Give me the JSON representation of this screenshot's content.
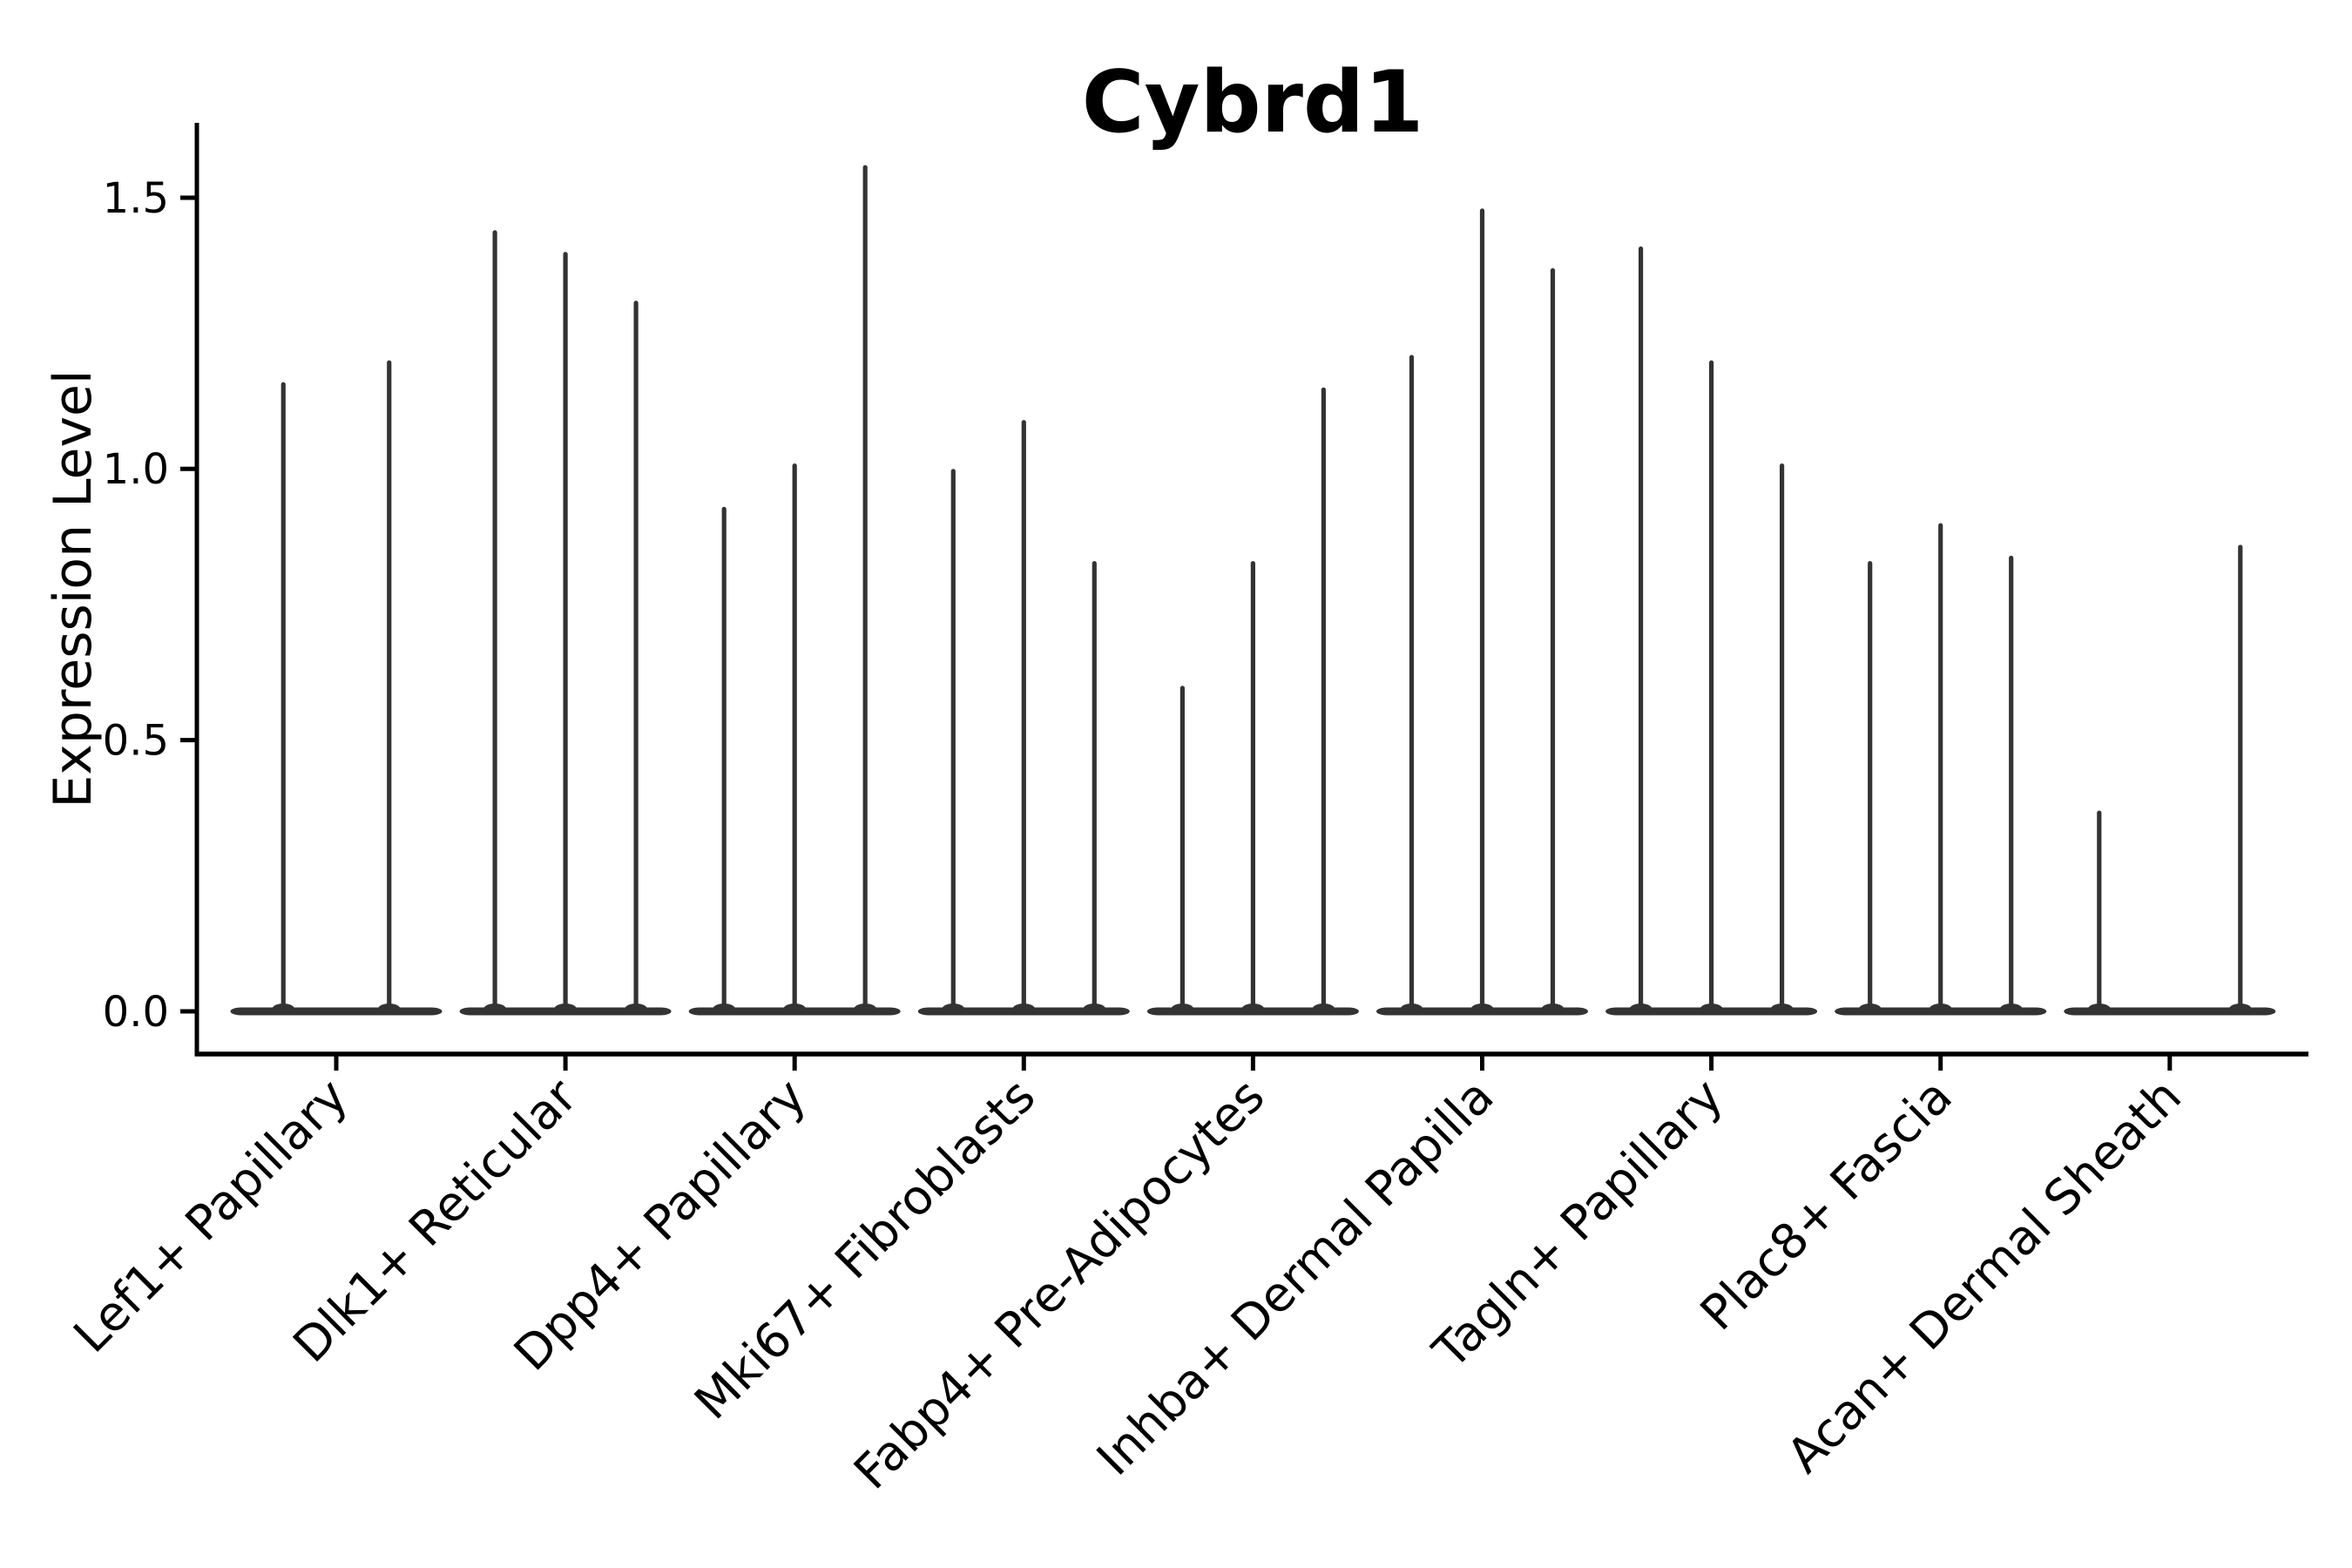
{
  "chart_data": {
    "type": "violin",
    "title": "Cybrd1",
    "xlabel": "",
    "ylabel": "Expression Level",
    "ylim": [
      -0.08,
      1.64
    ],
    "yticks": [
      0.0,
      0.5,
      1.0,
      1.5
    ],
    "ytick_labels": [
      "0.0",
      "0.5",
      "1.0",
      "1.5"
    ],
    "grid": false,
    "legend": "none",
    "axis_color": "#000000",
    "violin_color": "#333333",
    "description": "Each group shows narrow violins: a flat density mass at expression 0 with a thin spike rising to the maximum expression value; spike_maxima lists the top of each violin spike (null = violin present with no spike).",
    "groups": [
      {
        "label": "Lef1+ Papillary",
        "spike_maxima": [
          1.16,
          1.2
        ]
      },
      {
        "label": "Dlk1+ Reticular",
        "spike_maxima": [
          1.44,
          1.4,
          1.31
        ]
      },
      {
        "label": "Dpp4+ Papillary",
        "spike_maxima": [
          0.93,
          1.01,
          1.56
        ]
      },
      {
        "label": "Mki67+ Fibroblasts",
        "spike_maxima": [
          1.0,
          1.09,
          0.83
        ]
      },
      {
        "label": "Fabp4+ Pre-Adipocytes",
        "spike_maxima": [
          0.6,
          0.83,
          1.15
        ]
      },
      {
        "label": "Inhba+ Dermal Papilla",
        "spike_maxima": [
          1.21,
          1.48,
          1.37
        ]
      },
      {
        "label": "Tagln+ Papillary",
        "spike_maxima": [
          1.41,
          1.2,
          1.01
        ]
      },
      {
        "label": "Plac8+ Fascia",
        "spike_maxima": [
          0.83,
          0.9,
          0.84
        ]
      },
      {
        "label": "Acan+ Dermal Sheath",
        "spike_maxima": [
          0.37,
          null,
          0.86
        ]
      }
    ]
  }
}
